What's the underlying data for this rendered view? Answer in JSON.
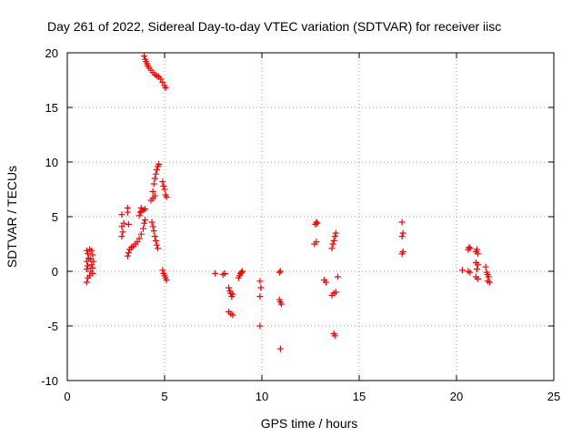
{
  "chart_data": {
    "type": "scatter",
    "title": "Day 261 of 2022, Sidereal Day-to-day VTEC variation (SDTVAR) for receiver iisc",
    "xlabel": "GPS time / hours",
    "ylabel": "SDTVAR / TECUs",
    "xlim": [
      0,
      25
    ],
    "ylim": [
      -10,
      20
    ],
    "xticks": [
      0,
      5,
      10,
      15,
      20,
      25
    ],
    "xtick_labels": [
      "0",
      "5",
      "10",
      "15",
      "20",
      "25"
    ],
    "yticks": [
      -10,
      -5,
      0,
      5,
      10,
      15,
      20
    ],
    "ytick_labels": [
      "-10",
      "-5",
      "0",
      "5",
      "10",
      "15",
      "20"
    ],
    "grid": true,
    "marker": "plus",
    "series": [
      {
        "name": "SDTVAR",
        "color": "#ff0000",
        "points": [
          [
            1.0,
            -1.0
          ],
          [
            1.05,
            -0.6
          ],
          [
            1.0,
            0.2
          ],
          [
            1.05,
            0.5
          ],
          [
            1.0,
            0.9
          ],
          [
            1.1,
            1.2
          ],
          [
            1.05,
            1.6
          ],
          [
            1.0,
            1.9
          ],
          [
            1.15,
            2.0
          ],
          [
            1.2,
            0.0
          ],
          [
            1.25,
            0.6
          ],
          [
            1.2,
            1.1
          ],
          [
            1.3,
            1.5
          ],
          [
            1.25,
            1.9
          ],
          [
            1.15,
            -0.4
          ],
          [
            1.3,
            -0.2
          ],
          [
            1.3,
            0.3
          ],
          [
            1.35,
            0.9
          ],
          [
            2.8,
            3.2
          ],
          [
            2.85,
            3.6
          ],
          [
            2.8,
            4.1
          ],
          [
            2.9,
            4.4
          ],
          [
            2.8,
            5.2
          ],
          [
            3.1,
            5.4
          ],
          [
            3.1,
            5.8
          ],
          [
            3.15,
            4.3
          ],
          [
            3.1,
            1.4
          ],
          [
            3.15,
            1.7
          ],
          [
            3.2,
            2.0
          ],
          [
            3.3,
            2.2
          ],
          [
            3.4,
            2.3
          ],
          [
            3.5,
            2.5
          ],
          [
            3.6,
            2.7
          ],
          [
            3.7,
            3.0
          ],
          [
            3.8,
            3.4
          ],
          [
            3.9,
            3.9
          ],
          [
            3.95,
            4.4
          ],
          [
            4.0,
            4.7
          ],
          [
            3.7,
            5.1
          ],
          [
            3.75,
            5.4
          ],
          [
            3.8,
            5.5
          ],
          [
            3.9,
            5.6
          ],
          [
            4.0,
            5.7
          ],
          [
            3.8,
            5.8
          ],
          [
            3.95,
            19.7
          ],
          [
            4.0,
            19.4
          ],
          [
            4.05,
            19.2
          ],
          [
            4.1,
            19.0
          ],
          [
            4.15,
            18.8
          ],
          [
            4.2,
            18.6
          ],
          [
            4.3,
            18.4
          ],
          [
            4.4,
            18.2
          ],
          [
            4.5,
            18.0
          ],
          [
            4.6,
            17.9
          ],
          [
            4.7,
            17.8
          ],
          [
            4.8,
            17.6
          ],
          [
            4.9,
            17.3
          ],
          [
            5.0,
            17.0
          ],
          [
            5.05,
            16.8
          ],
          [
            4.3,
            6.5
          ],
          [
            4.4,
            6.7
          ],
          [
            4.5,
            6.9
          ],
          [
            4.4,
            7.3
          ],
          [
            4.45,
            8.0
          ],
          [
            4.5,
            8.5
          ],
          [
            4.55,
            8.9
          ],
          [
            4.6,
            9.3
          ],
          [
            4.65,
            9.6
          ],
          [
            4.7,
            9.8
          ],
          [
            4.35,
            4.5
          ],
          [
            4.4,
            4.1
          ],
          [
            4.45,
            3.7
          ],
          [
            4.5,
            3.2
          ],
          [
            4.55,
            2.8
          ],
          [
            4.6,
            2.4
          ],
          [
            4.65,
            2.1
          ],
          [
            4.9,
            8.2
          ],
          [
            4.95,
            7.8
          ],
          [
            5.0,
            7.5
          ],
          [
            5.05,
            7.0
          ],
          [
            5.1,
            6.8
          ],
          [
            4.9,
            0.1
          ],
          [
            4.95,
            -0.2
          ],
          [
            5.0,
            -0.4
          ],
          [
            5.05,
            -0.6
          ],
          [
            5.1,
            -0.8
          ],
          [
            7.6,
            -0.2
          ],
          [
            8.0,
            -0.3
          ],
          [
            8.1,
            -0.2
          ],
          [
            8.3,
            -1.5
          ],
          [
            8.35,
            -1.8
          ],
          [
            8.4,
            -2.0
          ],
          [
            8.45,
            -2.3
          ],
          [
            8.5,
            -2.1
          ],
          [
            8.3,
            -3.7
          ],
          [
            8.4,
            -3.9
          ],
          [
            8.5,
            -4.0
          ],
          [
            8.8,
            -0.6
          ],
          [
            8.85,
            -0.4
          ],
          [
            8.9,
            -0.2
          ],
          [
            8.95,
            -0.1
          ],
          [
            9.0,
            0.0
          ],
          [
            9.9,
            -0.9
          ],
          [
            9.95,
            -1.5
          ],
          [
            9.9,
            -2.3
          ],
          [
            9.9,
            -5.0
          ],
          [
            10.9,
            -0.1
          ],
          [
            10.95,
            0.0
          ],
          [
            10.9,
            -2.6
          ],
          [
            10.95,
            -2.8
          ],
          [
            11.0,
            -3.0
          ],
          [
            10.95,
            -7.1
          ],
          [
            12.7,
            2.5
          ],
          [
            12.8,
            2.7
          ],
          [
            12.75,
            4.3
          ],
          [
            12.8,
            4.5
          ],
          [
            12.85,
            4.4
          ],
          [
            13.2,
            -0.8
          ],
          [
            13.3,
            -1.0
          ],
          [
            13.6,
            2.1
          ],
          [
            13.65,
            2.5
          ],
          [
            13.7,
            2.8
          ],
          [
            13.75,
            3.2
          ],
          [
            13.8,
            3.5
          ],
          [
            13.6,
            -2.2
          ],
          [
            13.7,
            -2.0
          ],
          [
            13.8,
            -1.9
          ],
          [
            13.7,
            -5.7
          ],
          [
            13.75,
            -5.9
          ],
          [
            13.9,
            -0.5
          ],
          [
            17.2,
            1.6
          ],
          [
            17.25,
            1.8
          ],
          [
            17.2,
            3.2
          ],
          [
            17.25,
            3.5
          ],
          [
            17.2,
            4.5
          ],
          [
            20.3,
            0.1
          ],
          [
            20.6,
            0.0
          ],
          [
            20.7,
            -0.1
          ],
          [
            20.6,
            2.0
          ],
          [
            20.65,
            2.2
          ],
          [
            20.7,
            2.1
          ],
          [
            21.0,
            1.8
          ],
          [
            21.05,
            2.0
          ],
          [
            21.1,
            1.6
          ],
          [
            21.0,
            0.8
          ],
          [
            21.1,
            0.6
          ],
          [
            21.05,
            0.2
          ],
          [
            21.0,
            -0.5
          ],
          [
            21.1,
            -0.7
          ],
          [
            21.5,
            0.4
          ],
          [
            21.55,
            -0.1
          ],
          [
            21.6,
            -0.3
          ],
          [
            21.65,
            -0.5
          ],
          [
            21.6,
            -0.9
          ],
          [
            21.7,
            -1.0
          ]
        ]
      }
    ]
  }
}
